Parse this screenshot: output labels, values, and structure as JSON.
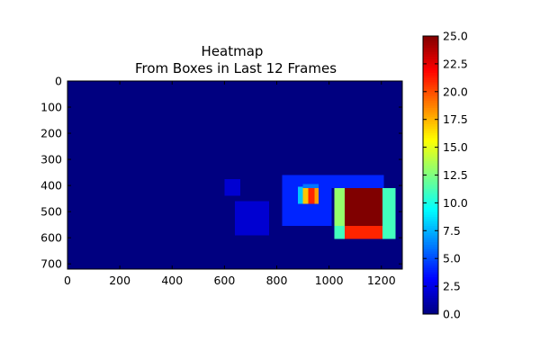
{
  "chart_data": {
    "type": "heatmap",
    "title_lines": [
      "Heatmap",
      "From Boxes in Last 12 Frames"
    ],
    "xlim": [
      0,
      1280
    ],
    "ylim": [
      720,
      0
    ],
    "y_inverted": true,
    "x_ticks": [
      "0",
      "200",
      "400",
      "600",
      "800",
      "1000",
      "1200"
    ],
    "y_ticks": [
      "0",
      "100",
      "200",
      "300",
      "400",
      "500",
      "600",
      "700"
    ],
    "colorbar": {
      "range": [
        0,
        25
      ],
      "ticks": [
        "0.0",
        "2.5",
        "5.0",
        "7.5",
        "10.0",
        "12.5",
        "15.0",
        "17.5",
        "20.0",
        "22.5",
        "25.0"
      ],
      "colormap": "jet"
    },
    "background_value": 0,
    "regions": [
      {
        "x0": 600,
        "x1": 660,
        "y0": 375,
        "y1": 440,
        "value": 2
      },
      {
        "x0": 640,
        "x1": 770,
        "y0": 460,
        "y1": 590,
        "value": 2
      },
      {
        "x0": 820,
        "x1": 1010,
        "y0": 360,
        "y1": 555,
        "value": 4
      },
      {
        "x0": 1010,
        "x1": 1210,
        "y0": 360,
        "y1": 410,
        "value": 4
      },
      {
        "x0": 880,
        "x1": 900,
        "y0": 405,
        "y1": 470,
        "value": 8
      },
      {
        "x0": 900,
        "x1": 960,
        "y0": 395,
        "y1": 410,
        "value": 6
      },
      {
        "x0": 900,
        "x1": 920,
        "y0": 410,
        "y1": 470,
        "value": 17
      },
      {
        "x0": 920,
        "x1": 945,
        "y0": 410,
        "y1": 470,
        "value": 21
      },
      {
        "x0": 945,
        "x1": 960,
        "y0": 410,
        "y1": 470,
        "value": 18
      },
      {
        "x0": 1020,
        "x1": 1060,
        "y0": 410,
        "y1": 555,
        "value": 13
      },
      {
        "x0": 1020,
        "x1": 1060,
        "y0": 555,
        "y1": 605,
        "value": 11
      },
      {
        "x0": 1060,
        "x1": 1205,
        "y0": 410,
        "y1": 555,
        "value": 25
      },
      {
        "x0": 1060,
        "x1": 1205,
        "y0": 555,
        "y1": 605,
        "value": 21
      },
      {
        "x0": 1205,
        "x1": 1255,
        "y0": 410,
        "y1": 605,
        "value": 11
      }
    ]
  }
}
